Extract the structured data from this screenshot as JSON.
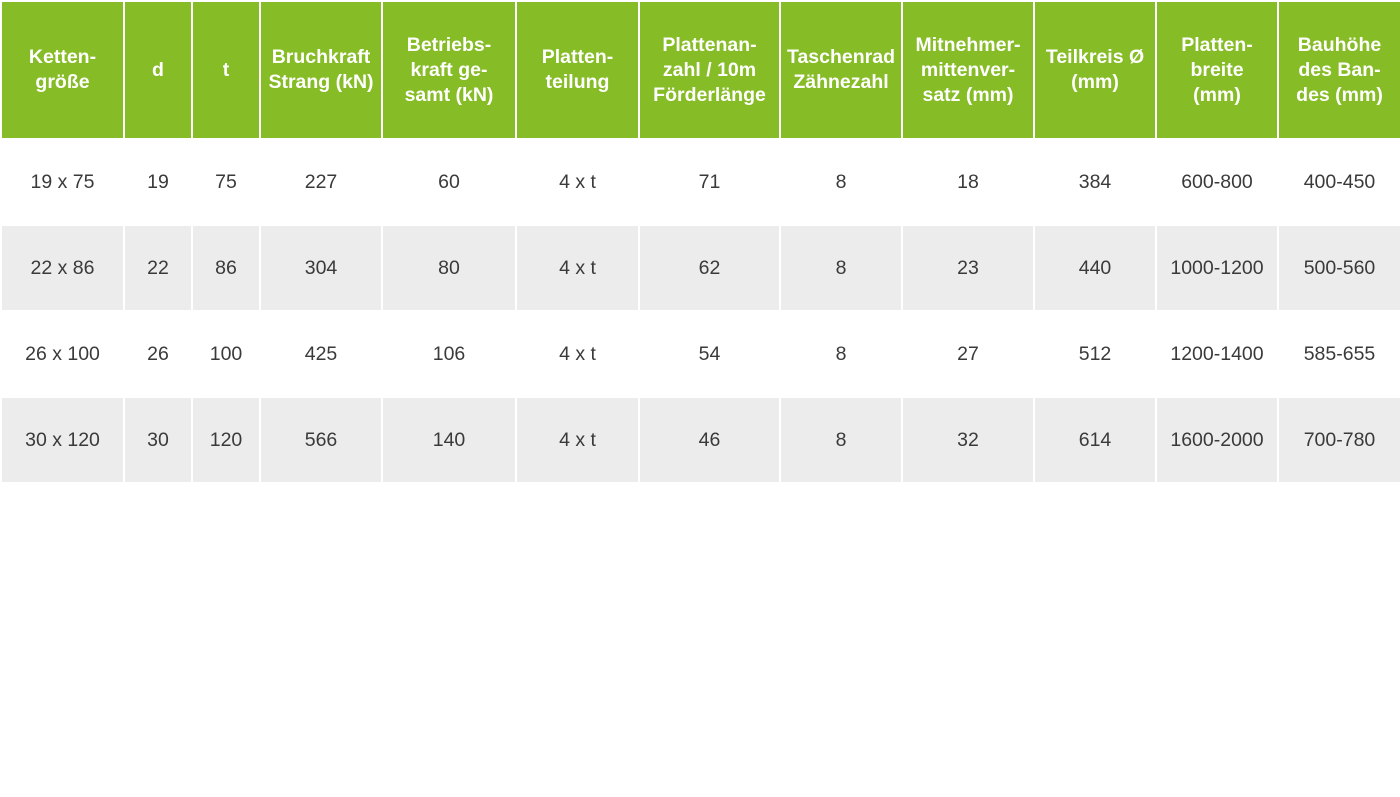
{
  "table": {
    "headers": [
      "Ketten-\ngröße",
      "d",
      "t",
      "Bruchkraft\nStrang (kN)",
      "Betriebs-\nkraft ge-\nsamt (kN)",
      "Platten-\nteilung",
      "Plattenan-\nzahl / 10m\nFörderlänge",
      "Taschenrad\nZähnezahl",
      "Mitnehmer-\nmittenver-\nsatz (mm)",
      "Teilkreis Ø\n(mm)",
      "Platten-\nbreite\n(mm)",
      "Bauhöhe\ndes Ban-\ndes (mm)"
    ],
    "rows": [
      [
        "19 x 75",
        "19",
        "75",
        "227",
        "60",
        "4 x t",
        "71",
        "8",
        "18",
        "384",
        "600-800",
        "400-450"
      ],
      [
        "22 x 86",
        "22",
        "86",
        "304",
        "80",
        "4 x t",
        "62",
        "8",
        "23",
        "440",
        "1000-1200",
        "500-560"
      ],
      [
        "26 x 100",
        "26",
        "100",
        "425",
        "106",
        "4 x t",
        "54",
        "8",
        "27",
        "512",
        "1200-1400",
        "585-655"
      ],
      [
        "30 x 120",
        "30",
        "120",
        "566",
        "140",
        "4 x t",
        "46",
        "8",
        "32",
        "614",
        "1600-2000",
        "700-780"
      ]
    ]
  },
  "colors": {
    "header_background": "#86bc25",
    "header_text": "#ffffff",
    "row_alt_background": "#ececec",
    "cell_text": "#3a3a3a"
  }
}
